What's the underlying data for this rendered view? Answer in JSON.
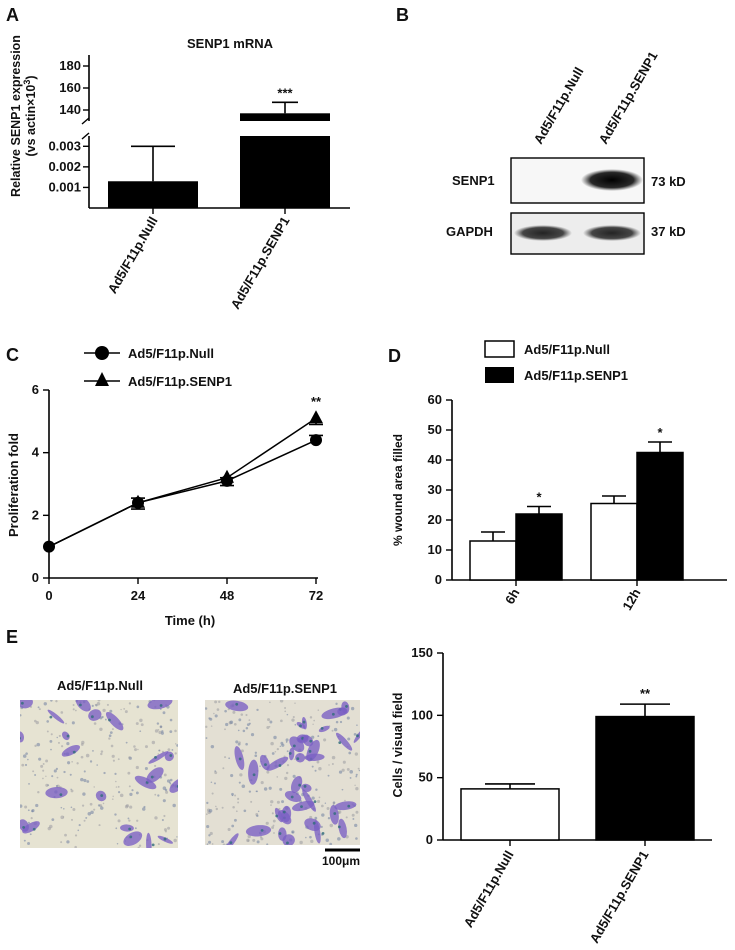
{
  "panels": [
    "A",
    "B",
    "C",
    "D",
    "E"
  ],
  "panel_b": {
    "lanes": [
      "Ad5/F11p.Null",
      "Ad5/F11p.SENP1"
    ],
    "rows": [
      {
        "label": "SENP1",
        "size": "73 kD",
        "intensity": [
          0.0,
          1.0
        ]
      },
      {
        "label": "GAPDH",
        "size": "37 kD",
        "intensity": [
          0.85,
          0.85
        ]
      }
    ]
  },
  "panel_e_images": {
    "titles": [
      "Ad5/F11p.Null",
      "Ad5/F11p.SENP1"
    ],
    "scale_bar": "100μm"
  },
  "colors": {
    "bar_fill": "#000000",
    "open_fill": "#ffffff",
    "stain": "#7a5fc4",
    "background": "#e6e3d2"
  },
  "chart_data": [
    {
      "id": "A",
      "type": "bar",
      "title": "SENP1 mRNA",
      "ylabel_lines": [
        "Relative SENP1 expression",
        "(vs actin×10",
        "3",
        ")"
      ],
      "categories": [
        "Ad5/F11p.Null",
        "Ad5/F11p.SENP1"
      ],
      "values": [
        0.0013,
        137
      ],
      "errors": [
        0.0017,
        10
      ],
      "significance": [
        "",
        "***"
      ],
      "broken_axis": true,
      "lower": {
        "ylim": [
          0,
          0.0035
        ],
        "ticks": [
          0.001,
          0.002,
          0.003
        ],
        "tick_labels": [
          "0.001",
          "0.002",
          "0.003"
        ]
      },
      "upper": {
        "ylim": [
          130,
          190
        ],
        "ticks": [
          140,
          160,
          180
        ],
        "tick_labels": [
          "140",
          "160",
          "180"
        ]
      },
      "fill": [
        "#000000",
        "#000000"
      ]
    },
    {
      "id": "C",
      "type": "line",
      "xlabel": "Time (h)",
      "ylabel": "Proliferation fold",
      "x": [
        0,
        24,
        48,
        72
      ],
      "xticks": [
        "0",
        "24",
        "48",
        "72"
      ],
      "yticks": [
        "0",
        "2",
        "4",
        "6"
      ],
      "ylim": [
        0,
        6
      ],
      "xlim": [
        0,
        72
      ],
      "series": [
        {
          "name": "Ad5/F11p.Null",
          "marker": "circle",
          "values": [
            1.0,
            2.4,
            3.1,
            4.4
          ],
          "errors": [
            0,
            0.15,
            0.1,
            0.15
          ]
        },
        {
          "name": "Ad5/F11p.SENP1",
          "marker": "triangle",
          "values": [
            1.0,
            2.4,
            3.2,
            5.1
          ],
          "errors": [
            0,
            0.2,
            0.25,
            0.2
          ]
        }
      ],
      "annotation": {
        "x": 72,
        "text": "**"
      },
      "legend": "top-left"
    },
    {
      "id": "D",
      "type": "bar",
      "ylabel": "% wound area filled",
      "categories": [
        "6h",
        "12h"
      ],
      "ylim": [
        0,
        60
      ],
      "yticks": [
        "0",
        "10",
        "20",
        "30",
        "40",
        "50",
        "60"
      ],
      "series": [
        {
          "name": "Ad5/F11p.Null",
          "fill": "#ffffff",
          "values": [
            13,
            25.5
          ],
          "errors": [
            3,
            2.5
          ]
        },
        {
          "name": "Ad5/F11p.SENP1",
          "fill": "#000000",
          "values": [
            22,
            42.5
          ],
          "errors": [
            2.5,
            3.5
          ]
        }
      ],
      "significance": [
        [
          "",
          "*"
        ],
        [
          "",
          "*"
        ]
      ],
      "legend": "top-left"
    },
    {
      "id": "E",
      "type": "bar",
      "ylabel": "Cells / visual field",
      "categories": [
        "Ad5/F11p.Null",
        "Ad5/F11p.SENP1"
      ],
      "values": [
        41,
        99
      ],
      "errors": [
        4,
        10
      ],
      "fill": [
        "#ffffff",
        "#000000"
      ],
      "ylim": [
        0,
        150
      ],
      "yticks": [
        "0",
        "50",
        "100",
        "150"
      ],
      "significance": [
        "",
        "**"
      ]
    }
  ]
}
